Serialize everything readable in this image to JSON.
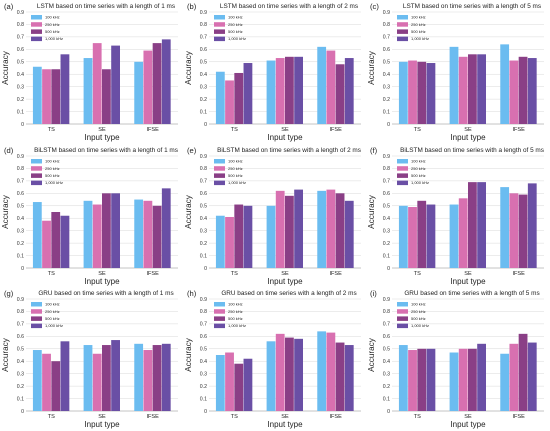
{
  "legend_entries": [
    "100 kHz",
    "250 kHz",
    "500 kHz",
    "1,000 kHz"
  ],
  "colors": {
    "s100": "#6bbcf0",
    "s250": "#d870b0",
    "s500": "#8a3f86",
    "s1000": "#6a4fa5",
    "grid": "#d9d9d9",
    "axis": "#888888"
  },
  "chart_data": [
    {
      "panel": "(a)",
      "type": "bar",
      "title": "LSTM based on time series with a length of 1 ms",
      "xlabel": "Input type",
      "ylabel": "Accuracy",
      "ylim": [
        0,
        0.9
      ],
      "categories": [
        "TS",
        "SE",
        "IFSE"
      ],
      "series": [
        {
          "name": "100 kHz",
          "values": [
            0.46,
            0.53,
            0.5
          ]
        },
        {
          "name": "250 kHz",
          "values": [
            0.44,
            0.65,
            0.59
          ]
        },
        {
          "name": "500 kHz",
          "values": [
            0.44,
            0.44,
            0.65
          ]
        },
        {
          "name": "1,000 kHz",
          "values": [
            0.56,
            0.63,
            0.68
          ]
        }
      ]
    },
    {
      "panel": "(b)",
      "type": "bar",
      "title": "LSTM based on time series with a length of 2 ms",
      "xlabel": "Input type",
      "ylabel": "Accuracy",
      "ylim": [
        0,
        0.9
      ],
      "categories": [
        "TS",
        "SE",
        "IFSE"
      ],
      "series": [
        {
          "name": "100 kHz",
          "values": [
            0.42,
            0.51,
            0.62
          ]
        },
        {
          "name": "250 kHz",
          "values": [
            0.35,
            0.53,
            0.59
          ]
        },
        {
          "name": "500 kHz",
          "values": [
            0.41,
            0.54,
            0.48
          ]
        },
        {
          "name": "1,000 kHz",
          "values": [
            0.49,
            0.54,
            0.53
          ]
        }
      ]
    },
    {
      "panel": "(c)",
      "type": "bar",
      "title": "LSTM based on time series with a length of 5 ms",
      "xlabel": "Input type",
      "ylabel": "Accuracy",
      "ylim": [
        0,
        0.9
      ],
      "categories": [
        "TS",
        "SE",
        "IFSE"
      ],
      "series": [
        {
          "name": "100 kHz",
          "values": [
            0.5,
            0.62,
            0.64
          ]
        },
        {
          "name": "250 kHz",
          "values": [
            0.51,
            0.54,
            0.51
          ]
        },
        {
          "name": "500 kHz",
          "values": [
            0.5,
            0.56,
            0.54
          ]
        },
        {
          "name": "1,000 kHz",
          "values": [
            0.49,
            0.56,
            0.53
          ]
        }
      ]
    },
    {
      "panel": "(d)",
      "type": "bar",
      "title": "BiLSTM based on time series with a length of 1 ms",
      "xlabel": "Input type",
      "ylabel": "Accuracy",
      "ylim": [
        0,
        0.9
      ],
      "categories": [
        "TS",
        "SE",
        "IFSE"
      ],
      "series": [
        {
          "name": "100 kHz",
          "values": [
            0.53,
            0.54,
            0.55
          ]
        },
        {
          "name": "250 kHz",
          "values": [
            0.38,
            0.51,
            0.54
          ]
        },
        {
          "name": "500 kHz",
          "values": [
            0.45,
            0.6,
            0.5
          ]
        },
        {
          "name": "1,000 kHz",
          "values": [
            0.42,
            0.6,
            0.64
          ]
        }
      ]
    },
    {
      "panel": "(e)",
      "type": "bar",
      "title": "BiLSTM based on time series with a length of 2 ms",
      "xlabel": "Input type",
      "ylabel": "Accuracy",
      "ylim": [
        0,
        0.9
      ],
      "categories": [
        "TS",
        "SE",
        "IFSE"
      ],
      "series": [
        {
          "name": "100 kHz",
          "values": [
            0.42,
            0.5,
            0.62
          ]
        },
        {
          "name": "250 kHz",
          "values": [
            0.41,
            0.62,
            0.63
          ]
        },
        {
          "name": "500 kHz",
          "values": [
            0.51,
            0.58,
            0.6
          ]
        },
        {
          "name": "1,000 kHz",
          "values": [
            0.5,
            0.63,
            0.54
          ]
        }
      ]
    },
    {
      "panel": "(f)",
      "type": "bar",
      "title": "BiLSTM based on time series with a length of 5 ms",
      "xlabel": "Input type",
      "ylabel": "Accuracy",
      "ylim": [
        0,
        0.9
      ],
      "categories": [
        "TS",
        "SE",
        "IFSE"
      ],
      "series": [
        {
          "name": "100 kHz",
          "values": [
            0.5,
            0.51,
            0.65
          ]
        },
        {
          "name": "250 kHz",
          "values": [
            0.49,
            0.56,
            0.6
          ]
        },
        {
          "name": "500 kHz",
          "values": [
            0.54,
            0.69,
            0.59
          ]
        },
        {
          "name": "1,000 kHz",
          "values": [
            0.51,
            0.69,
            0.68
          ]
        }
      ]
    },
    {
      "panel": "(g)",
      "type": "bar",
      "title": "GRU based on time series with a length of 1 ms",
      "xlabel": "Input type",
      "ylabel": "Accuracy",
      "ylim": [
        0,
        0.9
      ],
      "categories": [
        "TS",
        "SE",
        "IFSE"
      ],
      "series": [
        {
          "name": "100 kHz",
          "values": [
            0.49,
            0.53,
            0.54
          ]
        },
        {
          "name": "250 kHz",
          "values": [
            0.46,
            0.46,
            0.49
          ]
        },
        {
          "name": "500 kHz",
          "values": [
            0.4,
            0.53,
            0.53
          ]
        },
        {
          "name": "1,000 kHz",
          "values": [
            0.56,
            0.57,
            0.54
          ]
        }
      ]
    },
    {
      "panel": "(h)",
      "type": "bar",
      "title": "GRU based on time series with a length of 2 ms",
      "xlabel": "Input type",
      "ylabel": "Accuracy",
      "ylim": [
        0,
        0.9
      ],
      "categories": [
        "TS",
        "SE",
        "IFSE"
      ],
      "series": [
        {
          "name": "100 kHz",
          "values": [
            0.45,
            0.56,
            0.64
          ]
        },
        {
          "name": "250 kHz",
          "values": [
            0.47,
            0.62,
            0.63
          ]
        },
        {
          "name": "500 kHz",
          "values": [
            0.38,
            0.59,
            0.55
          ]
        },
        {
          "name": "1,000 kHz",
          "values": [
            0.42,
            0.58,
            0.53
          ]
        }
      ]
    },
    {
      "panel": "(i)",
      "type": "bar",
      "title": "GRU based on time series with a length of 5 ms",
      "xlabel": "Input type",
      "ylabel": "Accuracy",
      "ylim": [
        0,
        0.9
      ],
      "categories": [
        "TS",
        "SE",
        "IFSE"
      ],
      "series": [
        {
          "name": "100 kHz",
          "values": [
            0.53,
            0.47,
            0.46
          ]
        },
        {
          "name": "250 kHz",
          "values": [
            0.49,
            0.5,
            0.54
          ]
        },
        {
          "name": "500 kHz",
          "values": [
            0.5,
            0.5,
            0.62
          ]
        },
        {
          "name": "1,000 kHz",
          "values": [
            0.5,
            0.54,
            0.55
          ]
        }
      ]
    }
  ]
}
